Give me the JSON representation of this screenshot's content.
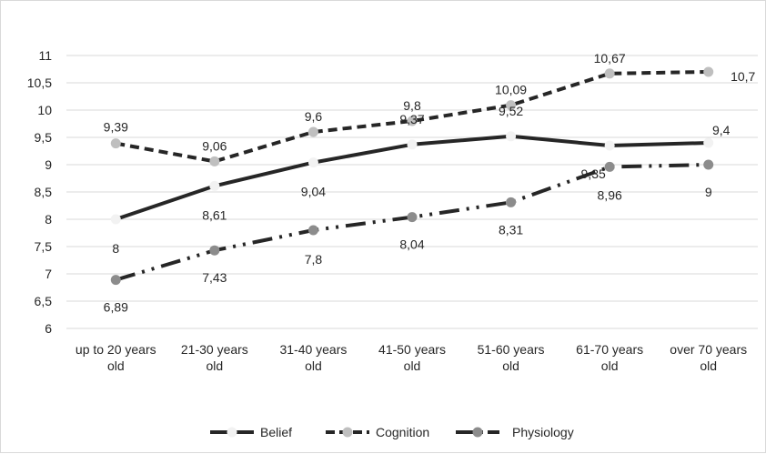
{
  "chart_data": {
    "type": "line",
    "title": "",
    "xlabel": "",
    "ylabel": "",
    "categories": [
      [
        "up to 20 years",
        "old"
      ],
      [
        "21-30 years",
        "old"
      ],
      [
        "31-40 years",
        "old"
      ],
      [
        "41-50 years",
        "old"
      ],
      [
        "51-60 years",
        "old"
      ],
      [
        "61-70 years",
        "old"
      ],
      [
        "over 70 years",
        "old"
      ]
    ],
    "ylim": [
      6,
      11
    ],
    "yticks": [
      "6",
      "6,5",
      "7",
      "7,5",
      "8",
      "8,5",
      "9",
      "9,5",
      "10",
      "10,5",
      "11"
    ],
    "grid": true,
    "legend": "bottom",
    "series": [
      {
        "name": "Belief",
        "values": [
          8,
          8.61,
          9.04,
          9.37,
          9.52,
          9.35,
          9.4
        ],
        "labels": [
          "8",
          "8,61",
          "9,04",
          "9,37",
          "9,52",
          "9,35",
          "9,4"
        ],
        "line_color": "#262626",
        "marker_color": "#f2f2f2",
        "dash": "solid"
      },
      {
        "name": "Cognition",
        "values": [
          9.39,
          9.06,
          9.6,
          9.8,
          10.09,
          10.67,
          10.7
        ],
        "labels": [
          "9,39",
          "9,06",
          "9,6",
          "9,8",
          "10,09",
          "10,67",
          "10,7"
        ],
        "line_color": "#262626",
        "marker_color": "#bfbfbf",
        "dash": "dashed"
      },
      {
        "name": "Physiology",
        "values": [
          6.89,
          7.43,
          7.8,
          8.04,
          8.31,
          8.96,
          9
        ],
        "labels": [
          "6,89",
          "7,43",
          "7,8",
          "8,04",
          "8,31",
          "8,96",
          "9"
        ],
        "line_color": "#262626",
        "marker_color": "#8c8c8c",
        "dash": "dashdotdot"
      }
    ]
  }
}
